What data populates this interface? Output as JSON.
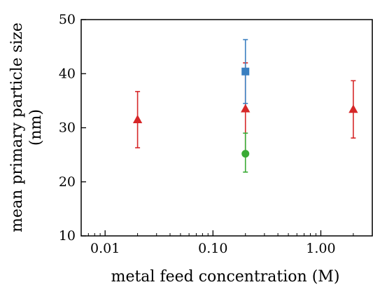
{
  "chart_data": {
    "type": "scatter",
    "title": "",
    "xlabel": "metal feed concentration (M)",
    "ylabel_lines": [
      "mean primary particle size",
      "(nm)"
    ],
    "xscale": "log",
    "xlim": [
      0.006,
      3.0
    ],
    "ylim": [
      10,
      50
    ],
    "xticks": [
      0.01,
      0.1,
      1.0
    ],
    "xtick_labels": [
      "0.01",
      "0.10",
      "1.00"
    ],
    "yticks": [
      10,
      20,
      30,
      40,
      50
    ],
    "ytick_labels": [
      "10",
      "20",
      "30",
      "40",
      "50"
    ],
    "grid": false,
    "series": [
      {
        "marker": "triangle",
        "color": "#d62728",
        "points": [
          {
            "x": 0.02,
            "y": 31.5,
            "err_low": 26.3,
            "err_high": 36.7
          },
          {
            "x": 0.2,
            "y": 33.5,
            "err_low": 25.0,
            "err_high": 42.0
          },
          {
            "x": 2.0,
            "y": 33.4,
            "err_low": 28.1,
            "err_high": 38.7
          }
        ]
      },
      {
        "marker": "square",
        "color": "#3a7fc0",
        "points": [
          {
            "x": 0.2,
            "y": 40.4,
            "err_low": 34.5,
            "err_high": 46.3
          }
        ]
      },
      {
        "marker": "circle",
        "color": "#3aaa35",
        "points": [
          {
            "x": 0.2,
            "y": 25.2,
            "err_low": 21.8,
            "err_high": 29.0
          }
        ]
      }
    ]
  }
}
